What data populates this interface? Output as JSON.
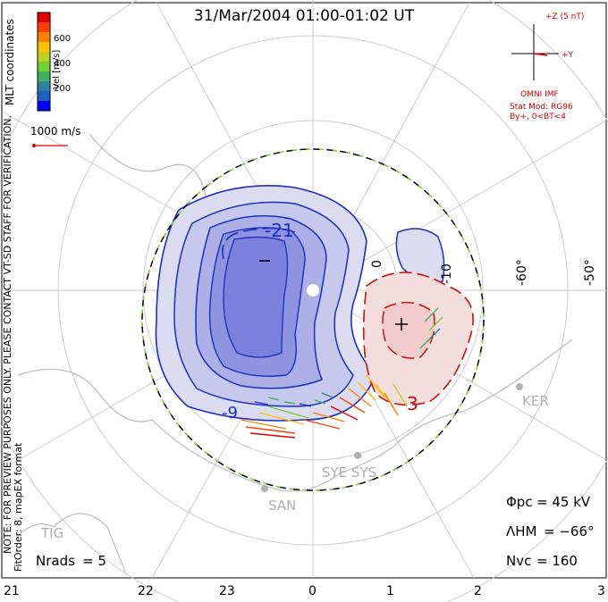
{
  "title": "31/Mar/2004 01:00-01:02 UT",
  "coord_label": "MLT coordinates",
  "colorbar": {
    "title": "Vel [m/s]",
    "ticks": [
      "600",
      "400",
      "200"
    ],
    "colors": [
      "#0000ff",
      "#2060c0",
      "#3080a0",
      "#40b060",
      "#70d030",
      "#c0d020",
      "#ffc000",
      "#ff8000",
      "#ff4000",
      "#e00000"
    ]
  },
  "vector_scale": "1000 m/s",
  "imf": {
    "z_label": "+Z (5 nT)",
    "y_label": "+Y",
    "source": "OMNI IMF",
    "model": "Stat Mod: RG96",
    "condition": "By+, 0<BT<4"
  },
  "note_line1": "NOTE: FOR PREVIEW PURPOSES ONLY. PLEASE CONTACT VT-SD STAFF FOR VERIFICATION.",
  "note_line2": "FitOrder: 8, mapEX format",
  "potential_labels": {
    "min": "-21",
    "max": "3",
    "contour_left": "-9",
    "contour_top": "-10",
    "contour_top2": "0"
  },
  "stations": [
    "KER",
    "SYE SYS",
    "SAN",
    "TIG"
  ],
  "lat_labels": [
    "-60°",
    "-50°"
  ],
  "stats": {
    "phi_pc_label": "Φpc",
    "phi_pc_value": "= 45 kV",
    "lambda_hm_label": "ΛHM",
    "lambda_hm_value": "= −66°",
    "n_vc_label": "Nvc",
    "n_vc_value": "= 160",
    "n_rads_label": "Nrads",
    "n_rads_value": "= 5"
  },
  "mlt_ticks": [
    "21",
    "22",
    "23",
    "0",
    "1",
    "2",
    "3"
  ],
  "colors": {
    "negative_cell": "#1a2fc0",
    "positive_cell": "#cc1010",
    "hmb": "#90d040",
    "grid": "#cccccc",
    "coast": "#bdbdbd"
  }
}
